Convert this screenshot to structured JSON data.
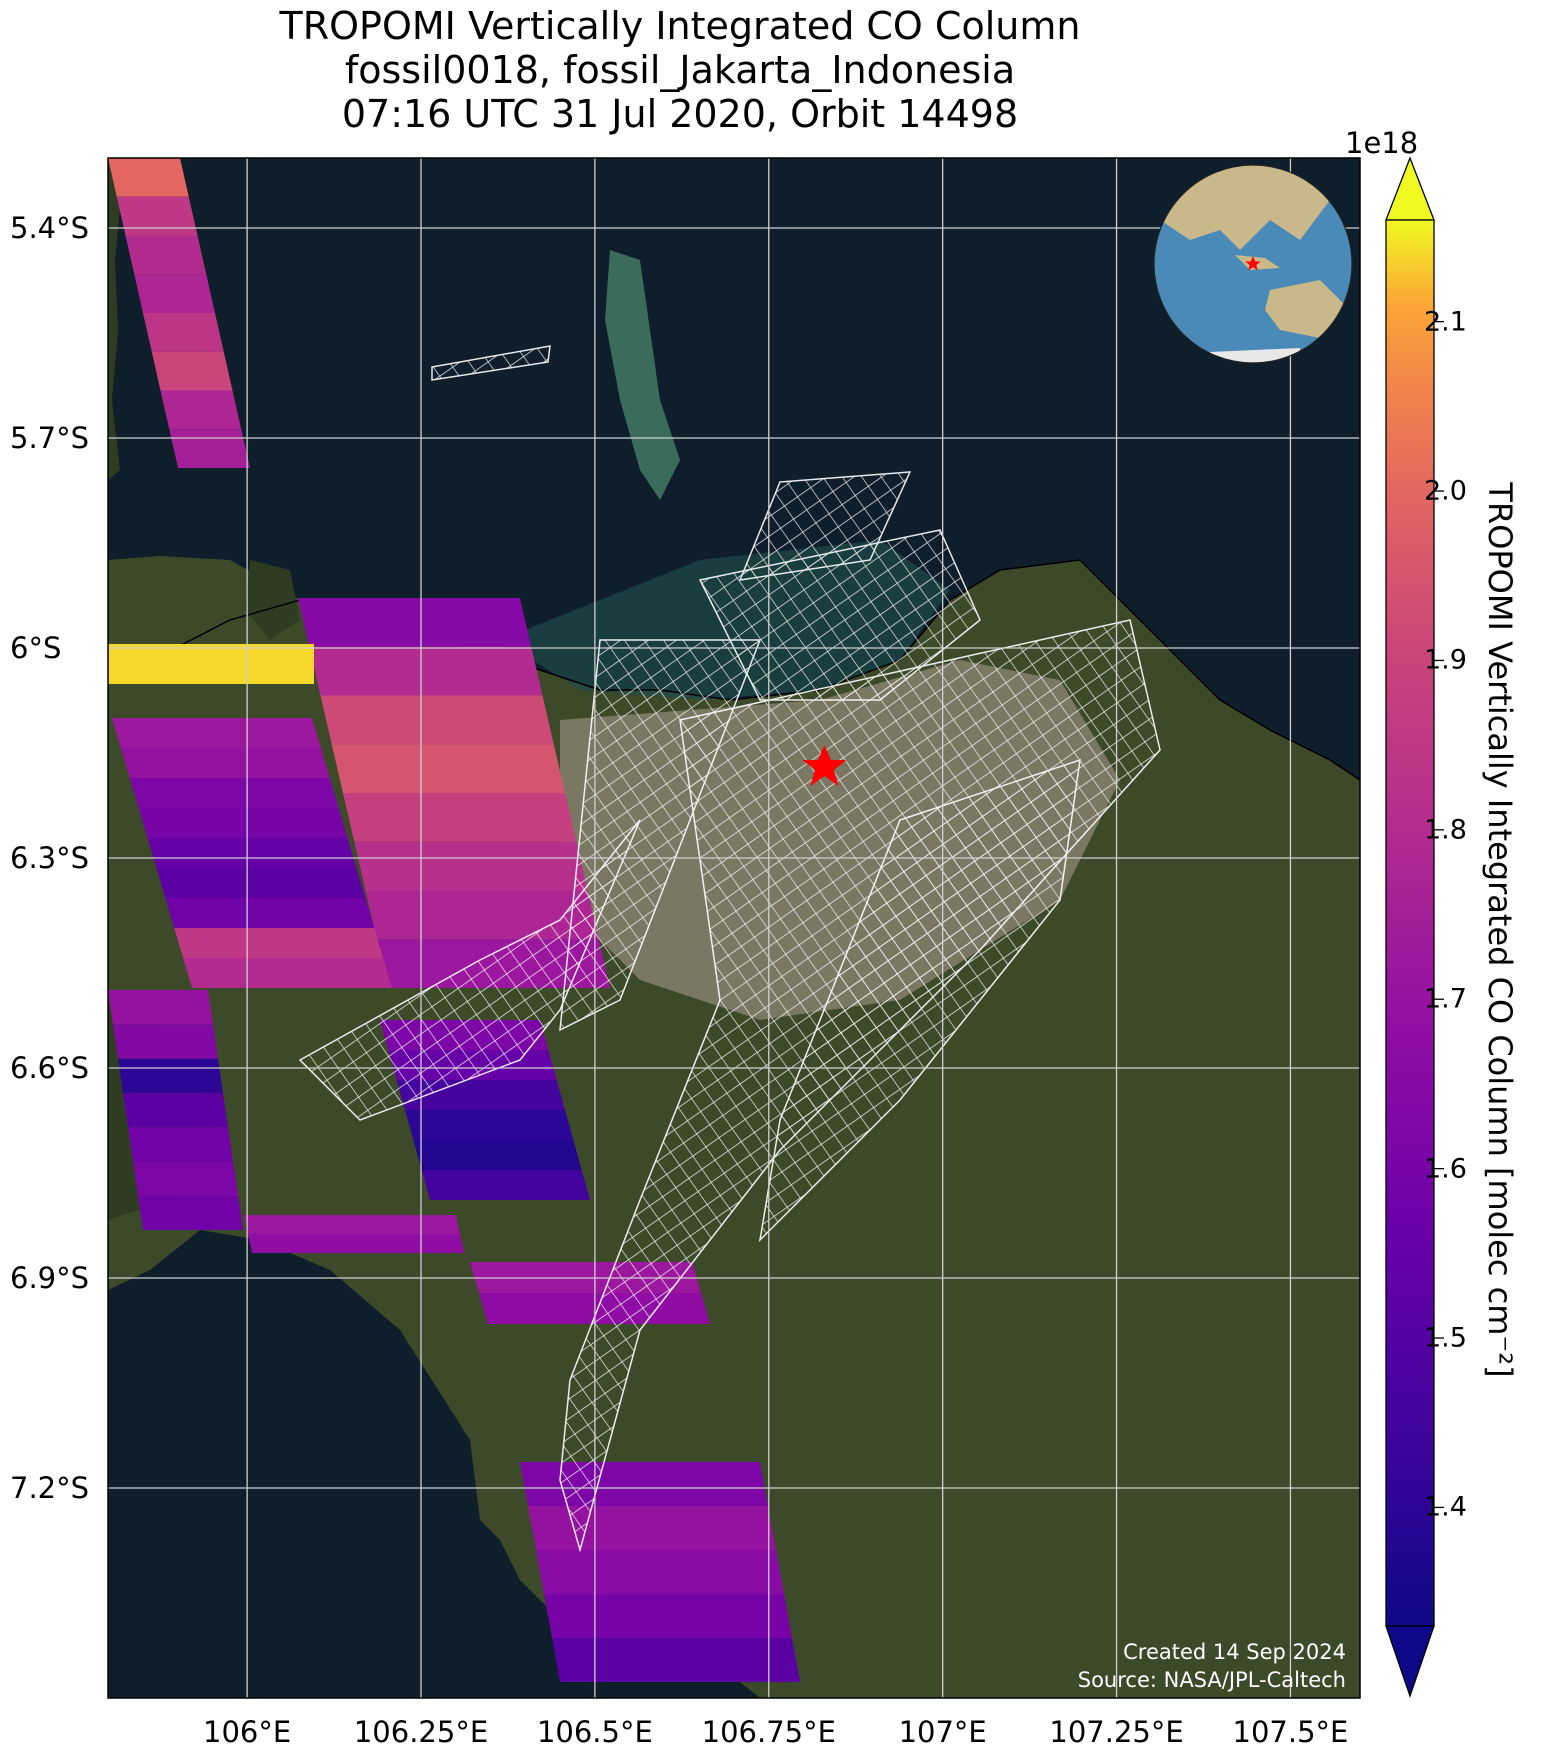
{
  "title": {
    "line1": "TROPOMI Vertically Integrated CO Column",
    "line2": "fossil0018, fossil_Jakarta_Indonesia",
    "line3": "07:16 UTC 31 Jul 2020, Orbit 14498"
  },
  "map": {
    "lon_range": [
      105.8,
      107.6
    ],
    "lat_range": [
      -7.5,
      -5.3
    ],
    "x_ticks": [
      "106°E",
      "106.25°E",
      "106.5°E",
      "106.75°E",
      "107°E",
      "107.25°E",
      "107.5°E"
    ],
    "y_ticks": [
      "5.4°S",
      "5.7°S",
      "6°S",
      "6.3°S",
      "6.6°S",
      "6.9°S",
      "7.2°S"
    ],
    "target": {
      "name": "fossil_Jakarta_Indonesia",
      "lon": 106.83,
      "lat": -6.17,
      "marker": "red-star"
    },
    "colors": {
      "ocean": "#0f1e2b",
      "land": "#3d4a2a",
      "urban": "#8a8272",
      "grid": "#d0d0d0",
      "star": "#ff0000"
    }
  },
  "colorbar": {
    "label": "TROPOMI Vertically Integrated CO Column [molec cm⁻²]",
    "exponent": "1e18",
    "ticks": [
      "1.4",
      "1.5",
      "1.6",
      "1.7",
      "1.8",
      "1.9",
      "2.0",
      "2.1"
    ],
    "min": 1.33,
    "max": 2.16,
    "colormap": "plasma"
  },
  "credits": {
    "created": "Created 14 Sep 2024",
    "source": "Source: NASA/JPL-Caltech"
  },
  "chart_data": {
    "type": "heatmap",
    "variable": "CO column",
    "swaths": [
      {
        "pixels": [
          2.0,
          1.85,
          1.8,
          1.78,
          1.84,
          1.9,
          1.78,
          1.75
        ]
      },
      {
        "pixels": [
          1.65,
          1.8,
          1.92,
          1.95,
          1.88,
          1.82,
          1.78,
          1.72
        ]
      },
      {
        "pixels": [
          1.72,
          1.7,
          1.62,
          1.6,
          1.55,
          1.52,
          1.58,
          1.85,
          1.8
        ]
      },
      {
        "pixels": [
          1.7,
          1.64,
          1.4,
          1.52,
          1.58,
          1.62,
          1.58
        ]
      },
      {
        "pixels": [
          1.62,
          1.55,
          1.46,
          1.4,
          1.38,
          1.45
        ]
      },
      {
        "pixels": [
          1.72,
          1.68
        ]
      },
      {
        "pixels": [
          1.62,
          1.55
        ]
      },
      {
        "pixels": [
          1.62,
          1.7,
          1.66,
          1.6,
          1.52
        ]
      }
    ],
    "high_strip": 2.14
  }
}
